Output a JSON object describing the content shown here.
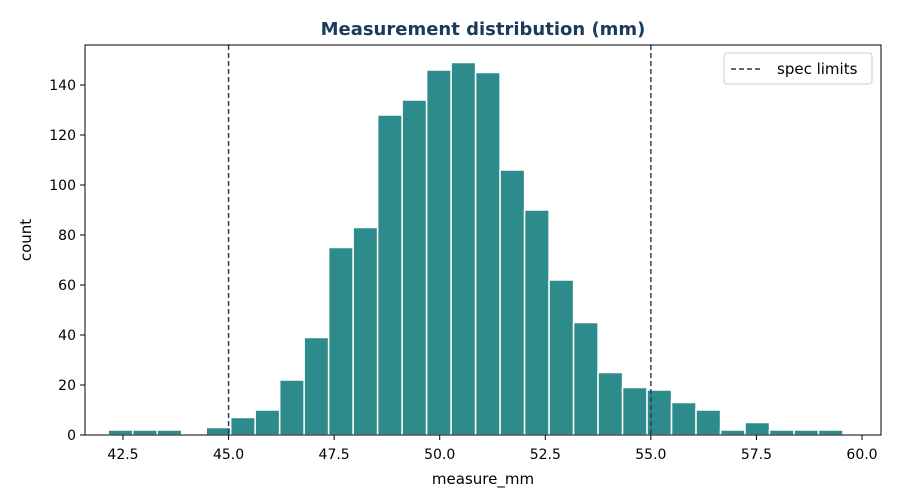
{
  "chart_data": {
    "type": "bar",
    "title": "Measurement distribution (mm)",
    "xlabel": "measure_mm",
    "ylabel": "count",
    "xlim": [
      41.6,
      60.45
    ],
    "ylim": [
      0,
      156
    ],
    "x_ticks": [
      42.5,
      45.0,
      47.5,
      50.0,
      52.5,
      55.0,
      57.5,
      60.0
    ],
    "x_tick_labels": [
      "42.5",
      "45.0",
      "47.5",
      "50.0",
      "52.5",
      "55.0",
      "57.5",
      "60.0"
    ],
    "y_ticks": [
      0,
      20,
      40,
      60,
      80,
      100,
      120,
      140
    ],
    "y_tick_labels": [
      "0",
      "20",
      "40",
      "60",
      "80",
      "100",
      "120",
      "140"
    ],
    "bin_start": 42.15,
    "bin_width": 0.58,
    "counts": [
      2,
      2,
      2,
      0,
      3,
      7,
      10,
      22,
      39,
      75,
      83,
      128,
      134,
      146,
      149,
      145,
      106,
      90,
      62,
      45,
      25,
      19,
      18,
      13,
      10,
      2,
      5,
      2,
      2,
      2
    ],
    "bar_color": "#2e8b8b",
    "spec_limits": [
      45.0,
      55.0
    ],
    "spec_line_color": "#1b3a5c",
    "legend": {
      "label": "spec limits",
      "position": "top-right"
    },
    "grid": false
  }
}
